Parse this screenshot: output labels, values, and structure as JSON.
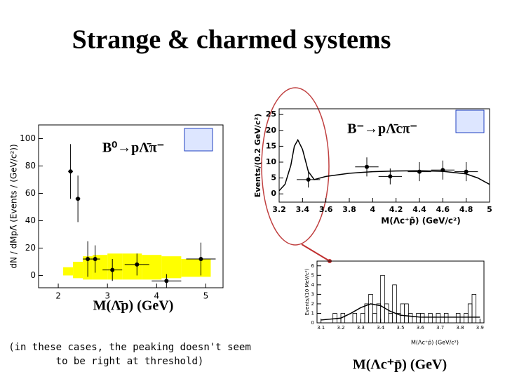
{
  "title": "Strange & charmed systems",
  "note": "(in these cases, the peaking doesn't seem to be right at threshold)",
  "captions": [
    "M(Λ̄p) (GeV)",
    "M(Λc⁺p̄) (GeV)"
  ],
  "chart_data": [
    {
      "type": "scatter",
      "annotation": "B⁰→pΛ̄π⁻",
      "ylabel": "dN / dMpΛ̄ (Events / (GeV/c²))",
      "xlim": [
        1.6,
        5.35
      ],
      "ylim": [
        -9,
        110
      ],
      "xticks": [
        2,
        3,
        4,
        5
      ],
      "yticks": [
        0,
        20,
        40,
        60,
        80,
        100
      ],
      "points": {
        "color": "#000000",
        "x": [
          2.25,
          2.4,
          2.6,
          2.75,
          3.1,
          3.6,
          4.2,
          4.9
        ],
        "values": [
          76,
          56,
          12,
          12,
          4,
          8,
          -4,
          12
        ],
        "errors": [
          20,
          17,
          13,
          10,
          8,
          8,
          5,
          12
        ],
        "xerrors": [
          0.05,
          0.05,
          0.1,
          0.1,
          0.2,
          0.25,
          0.3,
          0.3
        ]
      },
      "band": {
        "color": "#ffff00",
        "bins": [
          2.1,
          2.3,
          2.5,
          2.7,
          3.0,
          3.3,
          3.7,
          4.1,
          4.5,
          5.1
        ],
        "low": [
          0,
          -2,
          -3,
          -3,
          -3,
          -3,
          -3,
          -2,
          -1
        ],
        "high": [
          6,
          10,
          14,
          15,
          16,
          16,
          15,
          14,
          12
        ]
      }
    },
    {
      "type": "scatter",
      "annotation": "B⁻→pΛ̄cπ⁻",
      "ylabel": "Events/(0.2 GeV/c²)",
      "xlabel": "M(Λc⁺p̄) (GeV/c²)",
      "xlim": [
        3.2,
        5
      ],
      "ylim": [
        -2.6,
        26.8
      ],
      "xticks": [
        3.2,
        3.4,
        3.6,
        3.8,
        4,
        4.2,
        4.4,
        4.6,
        4.8,
        5
      ],
      "yticks": [
        0,
        5,
        10,
        15,
        20,
        25
      ],
      "points": {
        "color": "#000000",
        "x": [
          3.45,
          3.95,
          4.15,
          4.4,
          4.6,
          4.8
        ],
        "values": [
          4.5,
          8.5,
          5.5,
          7,
          7.5,
          7
        ],
        "errors": [
          2.5,
          3,
          2.5,
          3,
          3,
          3
        ],
        "xerrors": [
          0.1,
          0.1,
          0.1,
          0.1,
          0.1,
          0.1
        ]
      },
      "fit": {
        "color": "#000000",
        "x": [
          3.2,
          3.25,
          3.3,
          3.33,
          3.36,
          3.4,
          3.45,
          3.5,
          3.6,
          3.8,
          4,
          4.2,
          4.4,
          4.6,
          4.8,
          4.9,
          5
        ],
        "values": [
          1,
          3,
          9,
          15,
          17,
          14,
          7,
          4.5,
          5.5,
          6.5,
          7,
          7.2,
          7.3,
          7.1,
          6.3,
          5,
          3
        ]
      }
    },
    {
      "type": "histogram",
      "ylabel": "Events/(10 MeV/c²)",
      "xlabel": "M(Λc⁺p̄) (GeV/c²)",
      "xlim": [
        3.08,
        3.92
      ],
      "ylim": [
        0,
        6.5
      ],
      "xticks": [
        3.1,
        3.2,
        3.3,
        3.4,
        3.5,
        3.6,
        3.7,
        3.8,
        3.9
      ],
      "yticks": [
        0,
        1,
        2,
        3,
        4,
        5,
        6
      ],
      "bins": [
        3.1,
        3.12,
        3.14,
        3.16,
        3.18,
        3.2,
        3.22,
        3.24,
        3.26,
        3.28,
        3.3,
        3.32,
        3.34,
        3.36,
        3.38,
        3.4,
        3.42,
        3.44,
        3.46,
        3.48,
        3.5,
        3.52,
        3.54,
        3.56,
        3.58,
        3.6,
        3.62,
        3.64,
        3.66,
        3.68,
        3.7,
        3.72,
        3.74,
        3.76,
        3.78,
        3.8,
        3.82,
        3.84,
        3.86,
        3.88,
        3.9
      ],
      "values": [
        0,
        0,
        0,
        1,
        0,
        1,
        0,
        0,
        1,
        0,
        1,
        2,
        3,
        1,
        2,
        5,
        2,
        1,
        4,
        1,
        2,
        2,
        1,
        0,
        1,
        1,
        0,
        1,
        0,
        1,
        0,
        1,
        0,
        0,
        1,
        0,
        1,
        2,
        3,
        0
      ],
      "color": "#000000",
      "fit": {
        "color": "#000000",
        "x": [
          3.1,
          3.2,
          3.25,
          3.3,
          3.35,
          3.4,
          3.45,
          3.5,
          3.6,
          3.7,
          3.8,
          3.9
        ],
        "values": [
          0.3,
          0.5,
          1,
          1.6,
          2,
          1.8,
          1.2,
          0.8,
          0.6,
          0.6,
          0.6,
          0.6
        ]
      }
    }
  ]
}
